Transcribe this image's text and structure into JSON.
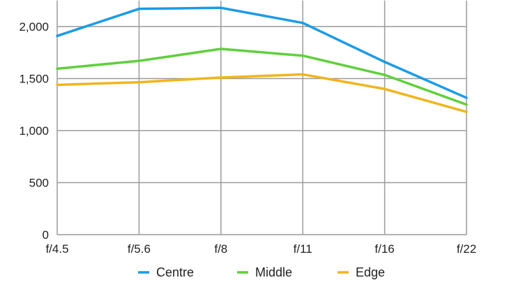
{
  "chart_data": {
    "type": "line",
    "categories": [
      "f/4.5",
      "f/5.6",
      "f/8",
      "f/11",
      "f/16",
      "f/22"
    ],
    "yticks": [
      {
        "value": 0,
        "label": "0"
      },
      {
        "value": 500,
        "label": "500"
      },
      {
        "value": 1000,
        "label": "1,000"
      },
      {
        "value": 1500,
        "label": "1,500"
      },
      {
        "value": 2000,
        "label": "2,000"
      }
    ],
    "ylim": [
      0,
      2250
    ],
    "grid": true,
    "legend_position": "bottom",
    "series": [
      {
        "name": "Centre",
        "color": "#1a9be6",
        "values": [
          1910,
          2170,
          2180,
          2035,
          1660,
          1315
        ]
      },
      {
        "name": "Middle",
        "color": "#5fd03c",
        "values": [
          1595,
          1670,
          1785,
          1720,
          1535,
          1250
        ]
      },
      {
        "name": "Edge",
        "color": "#f0b51c",
        "values": [
          1440,
          1465,
          1510,
          1540,
          1400,
          1180
        ]
      }
    ]
  }
}
